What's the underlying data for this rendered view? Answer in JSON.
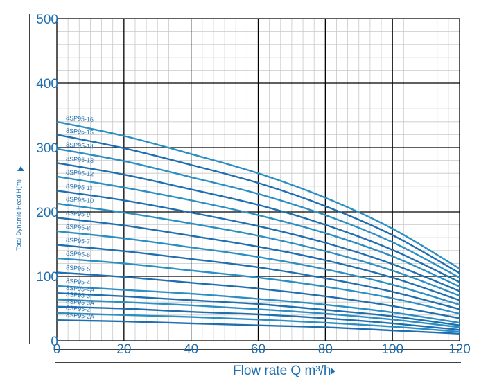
{
  "chart_data": {
    "type": "line",
    "x_label": "Flow rate Q m³/h",
    "y_label": "Total Dynamic Head H(m)",
    "x": [
      0,
      20,
      40,
      60,
      80,
      100,
      120
    ],
    "xlim": [
      0,
      120
    ],
    "ylim": [
      0,
      500
    ],
    "xticks": [
      0,
      20,
      40,
      60,
      80,
      100,
      120
    ],
    "yticks": [
      0,
      100,
      200,
      300,
      400,
      500
    ],
    "grid": true,
    "series": [
      {
        "name": "8SP95-16",
        "color": "#2b8fc4",
        "values": [
          340,
          318,
          290,
          260,
          222,
          174,
          112
        ]
      },
      {
        "name": "8SP95-15",
        "color": "#1f6fb0",
        "values": [
          320,
          299,
          273,
          245,
          209,
          164,
          105
        ]
      },
      {
        "name": "8SP95-14",
        "color": "#2b8fc4",
        "values": [
          298,
          279,
          254,
          228,
          195,
          153,
          98
        ]
      },
      {
        "name": "8SP95-13",
        "color": "#1f6fb0",
        "values": [
          276,
          258,
          235,
          211,
          180,
          141,
          91
        ]
      },
      {
        "name": "8SP95-12",
        "color": "#2b8fc4",
        "values": [
          255,
          238,
          218,
          195,
          167,
          131,
          84
        ]
      },
      {
        "name": "8SP95-11",
        "color": "#1f6fb0",
        "values": [
          233,
          218,
          199,
          178,
          152,
          119,
          77
        ]
      },
      {
        "name": "8SP95-10",
        "color": "#2b8fc4",
        "values": [
          213,
          199,
          182,
          163,
          139,
          109,
          70
        ]
      },
      {
        "name": "8SP95-9",
        "color": "#1f6fb0",
        "values": [
          191,
          179,
          163,
          146,
          125,
          98,
          63
        ]
      },
      {
        "name": "8SP95-8",
        "color": "#2b8fc4",
        "values": [
          170,
          159,
          145,
          130,
          111,
          87,
          56
        ]
      },
      {
        "name": "8SP95-7",
        "color": "#1f6fb0",
        "values": [
          149,
          139,
          127,
          114,
          97,
          76,
          49
        ]
      },
      {
        "name": "8SP95-6",
        "color": "#2b8fc4",
        "values": [
          128,
          120,
          109,
          98,
          84,
          66,
          42
        ]
      },
      {
        "name": "8SP95-5",
        "color": "#1f6fb0",
        "values": [
          106,
          99,
          90,
          81,
          69,
          54,
          35
        ]
      },
      {
        "name": "8SP95-4",
        "color": "#2b8fc4",
        "values": [
          85,
          79,
          73,
          65,
          56,
          44,
          28
        ]
      },
      {
        "name": "8SP95-4A",
        "color": "#1f6fb0",
        "values": [
          74,
          69,
          63,
          57,
          48,
          38,
          24
        ]
      },
      {
        "name": "8SP95-3",
        "color": "#2b8fc4",
        "values": [
          64,
          60,
          55,
          49,
          42,
          33,
          21
        ]
      },
      {
        "name": "8SP95-3A",
        "color": "#1f6fb0",
        "values": [
          53,
          50,
          45,
          41,
          35,
          27,
          17
        ]
      },
      {
        "name": "8SP95-2",
        "color": "#2b8fc4",
        "values": [
          43,
          40,
          37,
          33,
          28,
          22,
          14
        ]
      },
      {
        "name": "8SP95-2A",
        "color": "#1f6fb0",
        "values": [
          32,
          30,
          27,
          24,
          21,
          16,
          11
        ]
      }
    ]
  }
}
